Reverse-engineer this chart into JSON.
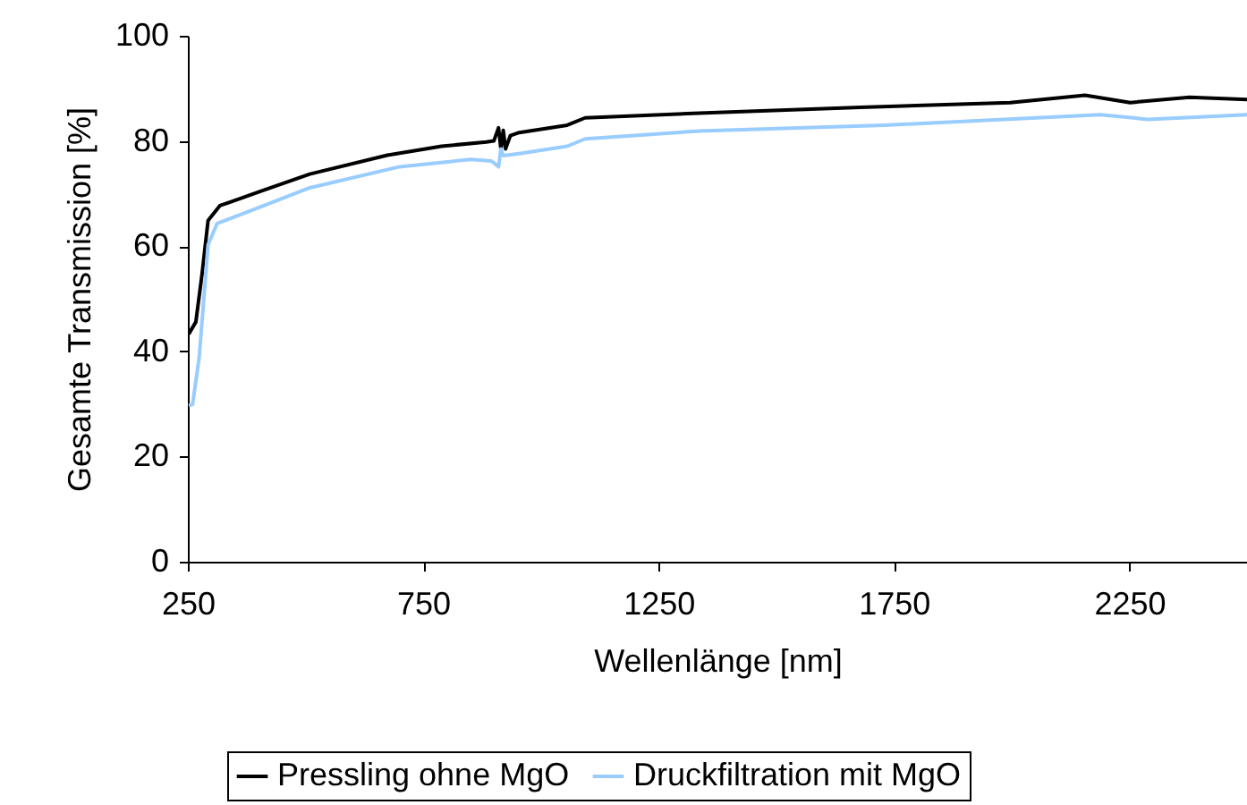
{
  "chart_data": {
    "type": "line",
    "xlabel": "Wellenlänge [nm]",
    "ylabel": "Gesamte Transmission [%]",
    "xlim": [
      250,
      2500
    ],
    "xticks": [
      250,
      750,
      1250,
      1750,
      2250
    ],
    "ylim": [
      0,
      100
    ],
    "yticks": [
      0,
      20,
      40,
      60,
      80,
      100
    ],
    "grid": false,
    "legend": "bottom",
    "marker": "none",
    "line_style": "solid",
    "series": [
      {
        "name": "Pressling ohne MgO",
        "color": "#000000",
        "x": [
          252,
          267,
          280,
          293,
          318,
          407,
          509,
          674,
          789,
          884,
          900,
          910,
          915,
          920,
          925,
          935,
          954,
          1056,
          1094,
          1336,
          1679,
          1997,
          2156,
          2252,
          2378,
          2500
        ],
        "values": [
          43.3,
          45.6,
          54.6,
          64.9,
          67.7,
          70.5,
          73.7,
          77.3,
          79.0,
          79.8,
          80,
          82.5,
          78.5,
          82,
          78.5,
          81,
          81.6,
          83.0,
          84.4,
          85.3,
          86.4,
          87.3,
          88.7,
          87.3,
          88.3,
          87.9
        ]
      },
      {
        "name": "Druckfiltration mit MgO",
        "color": "#99ccff",
        "x": [
          252,
          260,
          274,
          293,
          312,
          420,
          509,
          700,
          852,
          895,
          910,
          915,
          920,
          954,
          1056,
          1094,
          1336,
          1730,
          2188,
          2290,
          2500
        ],
        "values": [
          29.7,
          29.9,
          38.8,
          60.3,
          64.3,
          68.0,
          71.1,
          75.1,
          76.5,
          76.2,
          75.1,
          78.5,
          77.2,
          77.6,
          79.0,
          80.4,
          81.9,
          83.0,
          85.0,
          84.1,
          85.0
        ]
      }
    ]
  }
}
